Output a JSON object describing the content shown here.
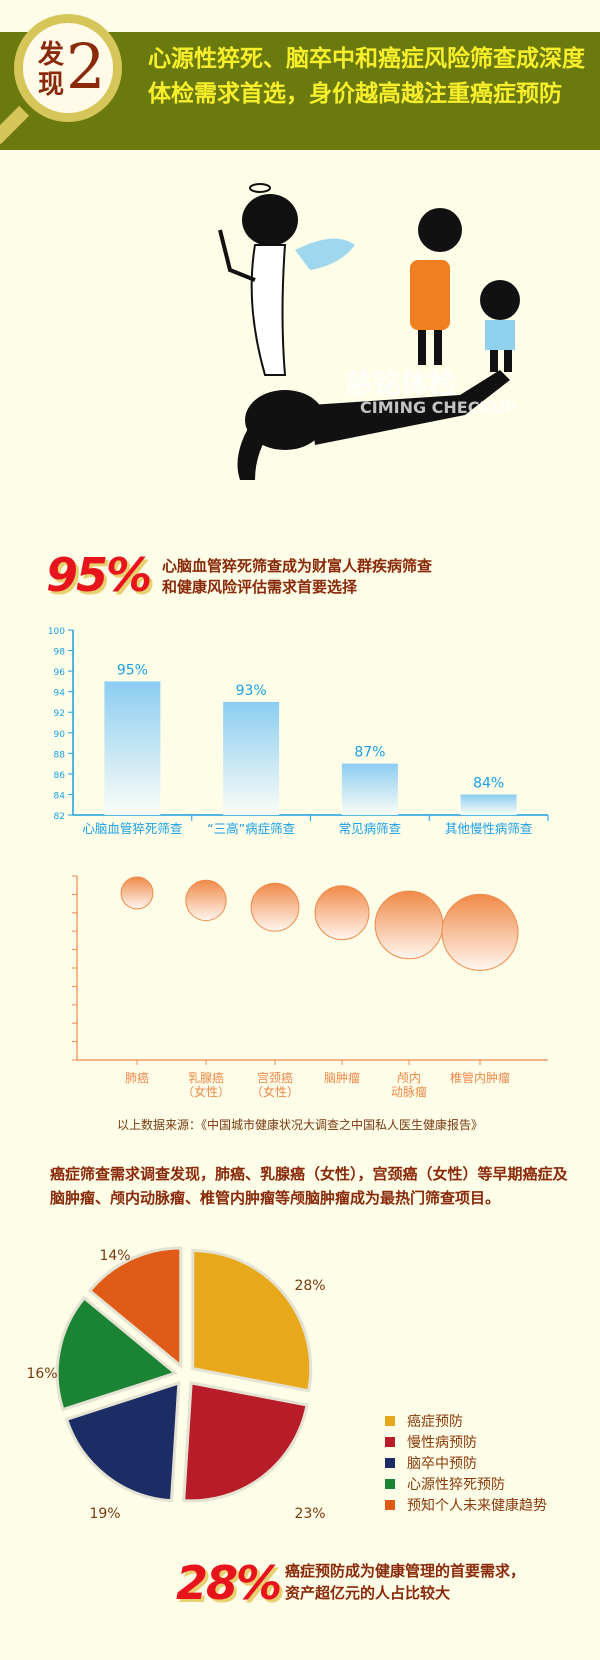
{
  "header": {
    "badge_word": "发现",
    "badge_number": "2",
    "title": "心源性猝死、脑卒中和癌症风险筛查成深度体检需求首选，身价越高越注重癌症预防"
  },
  "watermark": {
    "cn": "慈铭体检",
    "en": "CIMING CHECKUP"
  },
  "stat1": {
    "value": "95%",
    "text_line1": "心脑血管猝死筛查成为财富人群疾病筛查",
    "text_line2": "和健康风险评估需求首要选择"
  },
  "chart_data": [
    {
      "type": "bar",
      "categories": [
        "心脑血管猝死筛查",
        "“三高”病症筛查",
        "常见病筛查",
        "其他慢性病筛查"
      ],
      "values": [
        95,
        93,
        87,
        84
      ],
      "data_labels": [
        "95%",
        "93%",
        "87%",
        "84%"
      ],
      "ylim": [
        82,
        100
      ],
      "yticks": [
        82,
        84,
        86,
        88,
        90,
        92,
        94,
        96,
        98,
        100
      ],
      "color": "#8ccdf2"
    },
    {
      "type": "scatter",
      "note_style": "bubble",
      "categories": [
        "肺癌",
        "乳腺癌\n（女性）",
        "宫颈癌\n（女性）",
        "脑肿瘤",
        "颅内\n动脉瘤",
        "椎管内肿瘤"
      ],
      "relative_size": [
        0.42,
        0.53,
        0.63,
        0.71,
        0.89,
        1.0
      ],
      "color": "#f0894a"
    },
    {
      "type": "pie",
      "labels": [
        "癌症预防",
        "慢性病预防",
        "脑卒中预防",
        "心源性猝死预防",
        "预知个人未来健康趋势"
      ],
      "values": [
        28,
        23,
        19,
        16,
        14
      ],
      "data_labels": [
        "28%",
        "23%",
        "19%",
        "16%",
        "14%"
      ],
      "colors": [
        "#e8a81c",
        "#b81c28",
        "#1c2c64",
        "#1a8434",
        "#e05a18"
      ],
      "legend": "right"
    }
  ],
  "source": "以上数据来源：《中国城市健康状况大调查之中国私人医生健康报告》",
  "body_text": "癌症筛查需求调查发现，肺癌、乳腺癌（女性），宫颈癌（女性）等早期癌症及脑肿瘤、颅内动脉瘤、椎管内肿瘤等颅脑肿瘤成为最热门筛查项目。",
  "stat2": {
    "value": "28%",
    "text_line1": "癌症预防成为健康管理的首要需求，",
    "text_line2": "资产超亿元的人占比较大"
  }
}
